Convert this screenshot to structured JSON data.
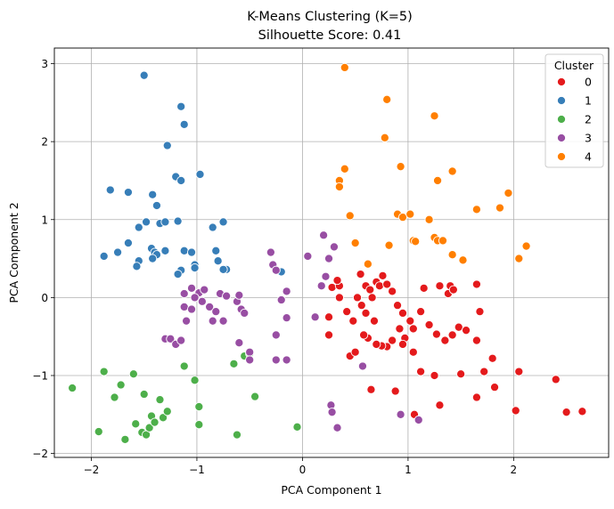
{
  "chart_data": {
    "type": "scatter",
    "title_line1": "K-Means Clustering (K=5)",
    "title_line2": "Silhouette Score: 0.41",
    "xlabel": "PCA Component 1",
    "ylabel": "PCA Component 2",
    "xlim": [
      -2.35,
      2.9
    ],
    "ylim": [
      -2.05,
      3.2
    ],
    "xticks": [
      -2,
      -1,
      0,
      1,
      2
    ],
    "yticks": [
      -2,
      -1,
      0,
      1,
      2,
      3
    ],
    "grid": true,
    "legend": {
      "title": "Cluster",
      "position": "top-right"
    },
    "series": [
      {
        "name": "0",
        "color": "#e41a1c",
        "points": [
          [
            0.55,
            0.3
          ],
          [
            0.6,
            0.15
          ],
          [
            0.64,
            0.1
          ],
          [
            0.7,
            0.2
          ],
          [
            0.73,
            0.15
          ],
          [
            0.66,
            0.0
          ],
          [
            0.52,
            0.0
          ],
          [
            0.56,
            -0.1
          ],
          [
            0.6,
            -0.2
          ],
          [
            0.68,
            -0.3
          ],
          [
            0.76,
            0.28
          ],
          [
            0.8,
            0.17
          ],
          [
            0.85,
            0.08
          ],
          [
            0.9,
            -0.1
          ],
          [
            0.95,
            -0.2
          ],
          [
            1.02,
            -0.3
          ],
          [
            1.05,
            -0.4
          ],
          [
            1.12,
            -0.18
          ],
          [
            1.2,
            -0.35
          ],
          [
            1.27,
            -0.47
          ],
          [
            1.15,
            0.12
          ],
          [
            1.3,
            0.15
          ],
          [
            1.38,
            0.05
          ],
          [
            1.4,
            0.15
          ],
          [
            1.43,
            0.1
          ],
          [
            1.48,
            -0.38
          ],
          [
            1.55,
            -0.42
          ],
          [
            1.65,
            -0.55
          ],
          [
            1.68,
            -0.18
          ],
          [
            1.65,
            0.17
          ],
          [
            1.72,
            -0.95
          ],
          [
            1.8,
            -0.78
          ],
          [
            1.5,
            -0.98
          ],
          [
            1.35,
            -0.55
          ],
          [
            1.42,
            -0.48
          ],
          [
            1.25,
            -1.0
          ],
          [
            1.3,
            -1.38
          ],
          [
            1.12,
            -0.95
          ],
          [
            1.05,
            -0.7
          ],
          [
            0.97,
            -0.52
          ],
          [
            0.92,
            -0.4
          ],
          [
            0.85,
            -0.55
          ],
          [
            0.8,
            -0.63
          ],
          [
            0.75,
            -0.62
          ],
          [
            0.7,
            -0.6
          ],
          [
            0.62,
            -0.52
          ],
          [
            0.58,
            -0.48
          ],
          [
            0.48,
            -0.3
          ],
          [
            0.42,
            -0.18
          ],
          [
            0.35,
            0.0
          ],
          [
            0.25,
            -0.25
          ],
          [
            0.28,
            0.13
          ],
          [
            0.35,
            0.15
          ],
          [
            0.25,
            -0.48
          ],
          [
            0.45,
            -0.75
          ],
          [
            0.5,
            -0.7
          ],
          [
            0.65,
            -1.18
          ],
          [
            0.88,
            -1.2
          ],
          [
            1.06,
            -1.5
          ],
          [
            1.65,
            -1.28
          ],
          [
            1.82,
            -1.15
          ],
          [
            2.02,
            -1.45
          ],
          [
            2.05,
            -0.95
          ],
          [
            2.4,
            -1.05
          ],
          [
            2.5,
            -1.47
          ],
          [
            2.65,
            -1.46
          ],
          [
            0.33,
            0.22
          ],
          [
            0.95,
            -0.6
          ]
        ]
      },
      {
        "name": "1",
        "color": "#377eb8",
        "points": [
          [
            -1.5,
            2.85
          ],
          [
            -1.15,
            2.45
          ],
          [
            -1.12,
            2.22
          ],
          [
            -1.28,
            1.95
          ],
          [
            -1.2,
            1.55
          ],
          [
            -1.15,
            1.5
          ],
          [
            -0.97,
            1.58
          ],
          [
            -1.82,
            1.38
          ],
          [
            -1.65,
            1.35
          ],
          [
            -1.42,
            1.32
          ],
          [
            -1.38,
            1.18
          ],
          [
            -1.48,
            0.97
          ],
          [
            -1.35,
            0.95
          ],
          [
            -1.3,
            0.97
          ],
          [
            -1.18,
            0.98
          ],
          [
            -1.55,
            0.9
          ],
          [
            -1.65,
            0.7
          ],
          [
            -1.75,
            0.58
          ],
          [
            -1.88,
            0.53
          ],
          [
            -1.55,
            0.47
          ],
          [
            -1.57,
            0.4
          ],
          [
            -1.43,
            0.63
          ],
          [
            -1.4,
            0.58
          ],
          [
            -1.38,
            0.55
          ],
          [
            -1.42,
            0.5
          ],
          [
            -1.3,
            0.6
          ],
          [
            -1.12,
            0.6
          ],
          [
            -1.05,
            0.58
          ],
          [
            -1.02,
            0.42
          ],
          [
            -1.15,
            0.35
          ],
          [
            -1.18,
            0.3
          ],
          [
            -1.02,
            0.38
          ],
          [
            -0.8,
            0.47
          ],
          [
            -0.82,
            0.6
          ],
          [
            -0.85,
            0.9
          ],
          [
            -0.75,
            0.97
          ],
          [
            -0.72,
            0.36
          ],
          [
            -0.75,
            0.36
          ],
          [
            -0.2,
            0.33
          ]
        ]
      },
      {
        "name": "2",
        "color": "#4daf4a",
        "points": [
          [
            -2.18,
            -1.16
          ],
          [
            -1.93,
            -1.72
          ],
          [
            -1.88,
            -0.95
          ],
          [
            -1.78,
            -1.28
          ],
          [
            -1.72,
            -1.12
          ],
          [
            -1.68,
            -1.82
          ],
          [
            -1.6,
            -0.98
          ],
          [
            -1.58,
            -1.62
          ],
          [
            -1.52,
            -1.73
          ],
          [
            -1.5,
            -1.24
          ],
          [
            -1.48,
            -1.76
          ],
          [
            -1.45,
            -1.67
          ],
          [
            -1.43,
            -1.52
          ],
          [
            -1.4,
            -1.6
          ],
          [
            -1.35,
            -1.31
          ],
          [
            -1.32,
            -1.54
          ],
          [
            -1.28,
            -1.46
          ],
          [
            -1.12,
            -0.88
          ],
          [
            -1.02,
            -1.06
          ],
          [
            -0.98,
            -1.4
          ],
          [
            -0.98,
            -1.63
          ],
          [
            -0.65,
            -0.85
          ],
          [
            -0.62,
            -1.76
          ],
          [
            -0.55,
            -0.75
          ],
          [
            -0.5,
            -0.72
          ],
          [
            -0.45,
            -1.27
          ],
          [
            -0.05,
            -1.66
          ]
        ]
      },
      {
        "name": "3",
        "color": "#984ea3",
        "points": [
          [
            -0.3,
            0.58
          ],
          [
            -0.28,
            0.42
          ],
          [
            -0.25,
            0.35
          ],
          [
            -0.15,
            0.08
          ],
          [
            -0.2,
            -0.03
          ],
          [
            -0.15,
            -0.26
          ],
          [
            -0.25,
            -0.48
          ],
          [
            -0.25,
            -0.8
          ],
          [
            -0.15,
            -0.8
          ],
          [
            0.05,
            0.53
          ],
          [
            0.2,
            0.8
          ],
          [
            0.25,
            0.5
          ],
          [
            0.3,
            0.65
          ],
          [
            0.18,
            0.15
          ],
          [
            0.22,
            0.27
          ],
          [
            0.12,
            -0.25
          ],
          [
            0.27,
            -1.38
          ],
          [
            0.28,
            -1.47
          ],
          [
            0.33,
            -1.67
          ],
          [
            0.57,
            -0.88
          ],
          [
            0.93,
            -1.5
          ],
          [
            1.1,
            -1.57
          ],
          [
            -0.98,
            0.06
          ],
          [
            -0.93,
            0.1
          ],
          [
            -1.02,
            0.0
          ],
          [
            -0.95,
            -0.05
          ],
          [
            -0.88,
            -0.12
          ],
          [
            -0.82,
            -0.18
          ],
          [
            -0.78,
            0.05
          ],
          [
            -0.72,
            0.02
          ],
          [
            -0.62,
            -0.05
          ],
          [
            -0.6,
            0.03
          ],
          [
            -0.58,
            -0.15
          ],
          [
            -0.55,
            -0.2
          ],
          [
            -0.6,
            -0.58
          ],
          [
            -0.5,
            -0.7
          ],
          [
            -0.5,
            -0.8
          ],
          [
            -0.85,
            -0.3
          ],
          [
            -0.75,
            -0.3
          ],
          [
            -1.05,
            0.12
          ],
          [
            -1.1,
            -0.3
          ],
          [
            -1.12,
            -0.12
          ],
          [
            -1.12,
            0.05
          ],
          [
            -1.05,
            -0.15
          ],
          [
            -1.3,
            -0.53
          ],
          [
            -1.25,
            -0.53
          ],
          [
            -1.2,
            -0.6
          ],
          [
            -1.15,
            -0.55
          ]
        ]
      },
      {
        "name": "4",
        "color": "#ff7f00",
        "points": [
          [
            0.4,
            2.95
          ],
          [
            0.8,
            2.54
          ],
          [
            1.25,
            2.33
          ],
          [
            0.78,
            2.05
          ],
          [
            0.93,
            1.68
          ],
          [
            0.4,
            1.65
          ],
          [
            0.35,
            1.5
          ],
          [
            0.35,
            1.42
          ],
          [
            1.28,
            1.5
          ],
          [
            1.42,
            1.62
          ],
          [
            1.95,
            1.34
          ],
          [
            0.45,
            1.05
          ],
          [
            0.9,
            1.07
          ],
          [
            0.95,
            1.03
          ],
          [
            1.02,
            1.07
          ],
          [
            1.2,
            1.0
          ],
          [
            1.25,
            0.77
          ],
          [
            1.28,
            0.73
          ],
          [
            1.33,
            0.73
          ],
          [
            1.05,
            0.73
          ],
          [
            1.07,
            0.72
          ],
          [
            0.5,
            0.7
          ],
          [
            0.82,
            0.67
          ],
          [
            1.65,
            1.13
          ],
          [
            1.87,
            1.15
          ],
          [
            1.42,
            0.55
          ],
          [
            1.52,
            0.48
          ],
          [
            2.05,
            0.5
          ],
          [
            2.12,
            0.66
          ],
          [
            0.62,
            0.43
          ]
        ]
      }
    ]
  }
}
